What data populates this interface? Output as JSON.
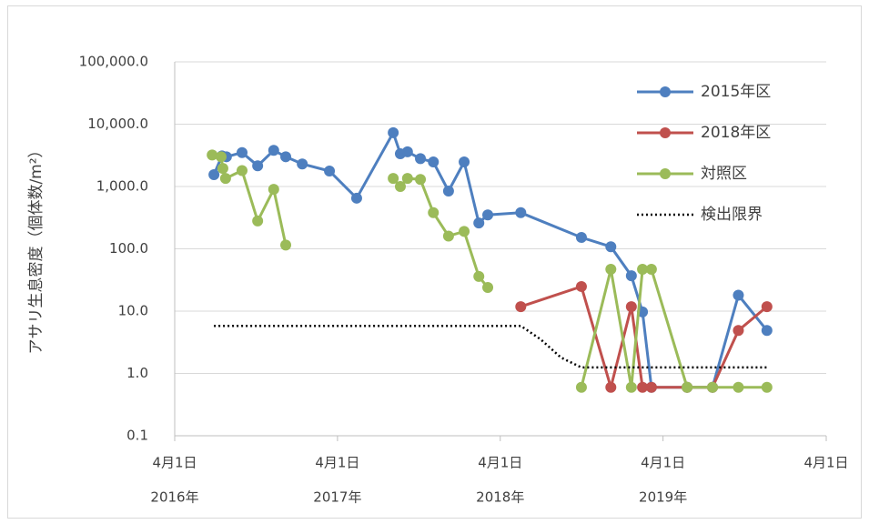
{
  "chart_data": {
    "type": "line",
    "y_label": "アサリ生息密度（個体数/m²）",
    "log_y": true,
    "grid": true,
    "legend": "upper right",
    "xlim": [
      "2016-04-01",
      "2020-04-01"
    ],
    "xticks": [
      {
        "value": "2016-04-01",
        "label": "4月1日"
      },
      {
        "value": "2017-04-01",
        "label": "4月1日"
      },
      {
        "value": "2018-04-01",
        "label": "4月1日"
      },
      {
        "value": "2019-04-01",
        "label": "4月1日"
      },
      {
        "value": "2020-04-01",
        "label": "4月1日"
      }
    ],
    "xtick_years": [
      "2016年",
      "2017年",
      "2018年",
      "2019年"
    ],
    "ylim": [
      0.1,
      100000
    ],
    "yticks": [
      {
        "value": 0.1,
        "label": "0.1"
      },
      {
        "value": 1,
        "label": "1.0"
      },
      {
        "value": 10,
        "label": "10.0"
      },
      {
        "value": 100,
        "label": "100.0"
      },
      {
        "value": 1000,
        "label": "1,000.0"
      },
      {
        "value": 10000,
        "label": "10,000.0"
      },
      {
        "value": 100000,
        "label": "100,000.0"
      }
    ],
    "series": [
      {
        "name": "2015年区",
        "color": "#4e7fbf",
        "style": "solid",
        "markers": true,
        "x": [
          "2016-06-28",
          "2016-07-16",
          "2016-07-26",
          "2016-08-30",
          "2016-10-04",
          "2016-11-09",
          "2016-12-06",
          "2017-01-12",
          "2017-03-14",
          "2017-05-14",
          "2017-08-04",
          "2017-08-20",
          "2017-09-05",
          "2017-10-04",
          "2017-11-02",
          "2017-12-06",
          "2018-01-10",
          "2018-02-12",
          "2018-03-04",
          "2018-05-17",
          "2018-09-30",
          "2018-12-05",
          "2019-01-20",
          "2019-02-14",
          "2019-03-06",
          "2019-05-25",
          "2019-07-21",
          "2019-09-17",
          "2019-11-20"
        ],
        "values": [
          1550,
          3100,
          3000,
          3500,
          2150,
          3800,
          3000,
          2300,
          1770,
          650,
          7300,
          3350,
          3600,
          2800,
          2480,
          845,
          2480,
          260,
          350,
          380,
          152,
          108,
          37,
          9.7,
          0.6,
          0.6,
          0.6,
          18,
          4.9
        ]
      },
      {
        "name": "2018年区",
        "color": "#c0504d",
        "style": "solid",
        "markers": true,
        "x": [
          "2018-05-17",
          "2018-09-30",
          "2018-12-05",
          "2019-01-20",
          "2019-02-14",
          "2019-03-06",
          "2019-05-25",
          "2019-07-21",
          "2019-09-17",
          "2019-11-20"
        ],
        "values": [
          11.8,
          24.8,
          0.6,
          11.8,
          0.6,
          0.6,
          0.6,
          0.6,
          4.9,
          11.8
        ]
      },
      {
        "name": "対照区",
        "color": "#9bbb59",
        "style": "solid",
        "markers": true,
        "x": [
          "2016-06-24",
          "2016-07-14",
          "2016-07-18",
          "2016-07-24",
          "2016-08-30",
          "2016-10-04",
          "2016-11-09",
          "2016-12-06",
          null,
          "2017-08-04",
          "2017-08-20",
          "2017-09-05",
          "2017-10-04",
          "2017-11-02",
          "2017-12-06",
          "2018-01-10",
          "2018-02-12",
          "2018-03-04",
          null,
          "2018-09-30",
          "2018-12-05",
          "2019-01-20",
          "2019-02-14",
          "2019-03-06",
          "2019-05-25",
          "2019-07-21",
          "2019-09-17",
          "2019-11-20"
        ],
        "values": [
          3200,
          3000,
          1950,
          1350,
          1800,
          280,
          900,
          115,
          null,
          1350,
          1000,
          1350,
          1300,
          380,
          160,
          190,
          36,
          24,
          null,
          0.6,
          47,
          0.6,
          47,
          47,
          0.6,
          0.6,
          0.6,
          0.6
        ]
      },
      {
        "name": "検出限界",
        "color": "#000000",
        "style": "dotted",
        "markers": false,
        "x": [
          "2016-06-28",
          "2018-05-17",
          "2018-07-01",
          "2018-08-15",
          "2018-09-30",
          "2019-11-20"
        ],
        "values": [
          5.8,
          5.8,
          3.5,
          1.8,
          1.25,
          1.25
        ]
      }
    ]
  }
}
